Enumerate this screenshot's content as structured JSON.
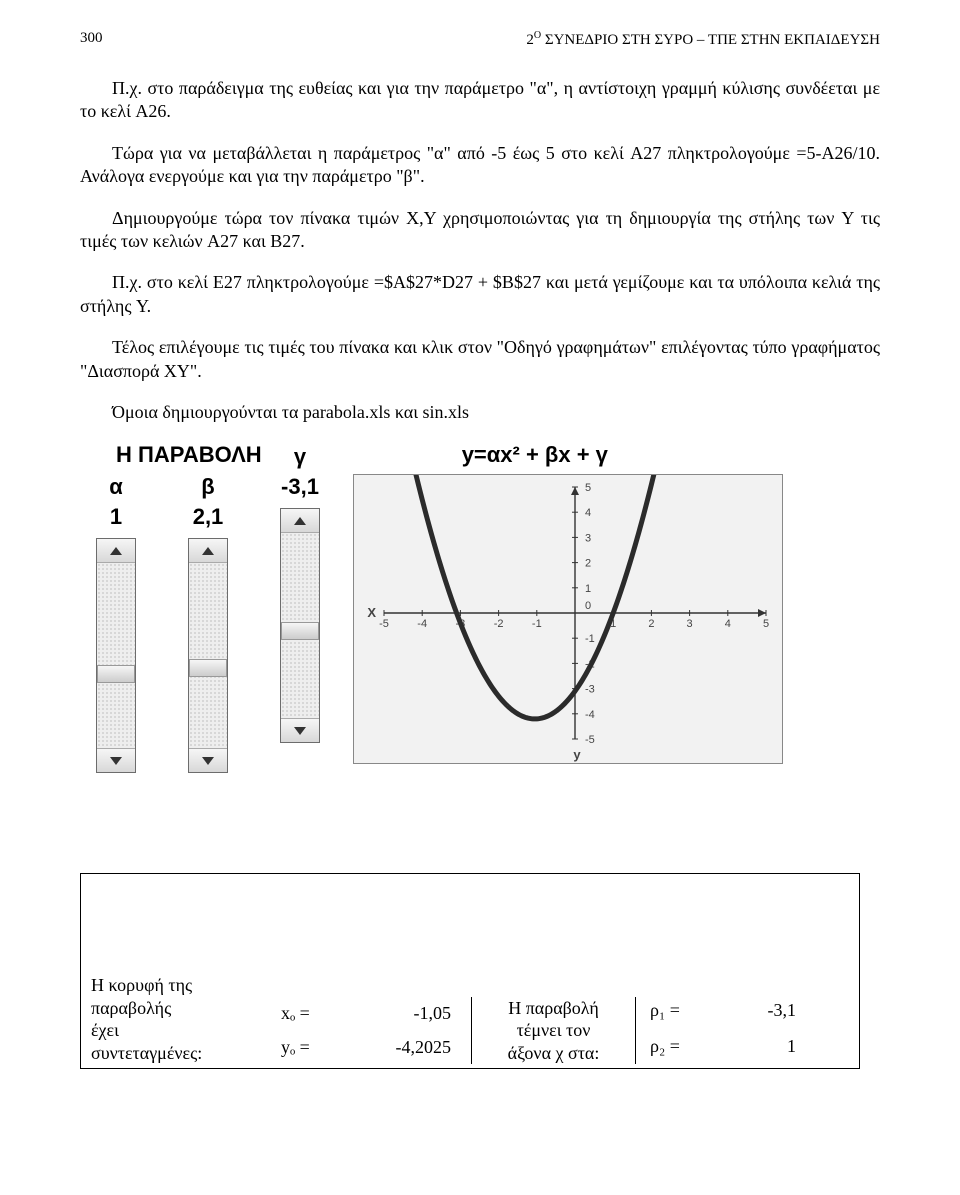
{
  "header": {
    "page_number": "300",
    "title_prefix": "2",
    "title_super": "Ο",
    "title_rest": " ΣΥΝΕΔΡΙΟ ΣΤΗ ΣΥΡΟ – ΤΠΕ ΣΤΗΝ ΕΚΠΑΙΔΕΥΣΗ"
  },
  "paragraphs": {
    "p1": "Π.χ. στο παράδειγμα της ευθείας και για την παράμετρο \"α\", η αντίστοιχη γραμμή κύλισης συνδέεται με το κελί A26.",
    "p2": "Τώρα για να μεταβάλλεται η παράμετρος \"α\" από -5 έως 5 στο κελί A27 πληκτρολογούμε =5-A26/10. Ανάλογα ενεργούμε και για την παράμετρο \"β\".",
    "p3": "Δημιουργούμε τώρα τον πίνακα τιμών X,Y χρησιμοποιώντας για τη δημιουργία της στήλης των Y τις τιμές των κελιών A27 και B27.",
    "p4": "Π.χ. στο κελί E27 πληκτρολογούμε =$A$27*D27 + $B$27 και μετά γεμίζουμε και τα υπόλοιπα κελιά της στήλης Y.",
    "p5": "Τέλος επιλέγουμε τις τιμές του πίνακα και κλικ στον \"Οδηγό γραφημάτων\" επιλέγοντας τύπο γραφήματος \"Διασπορά XY\".",
    "p6": "Όμοια δημιουργούνται τα parabola.xls και sin.xls"
  },
  "chart_section": {
    "title": "Η ΠΑΡΑΒΟΛΗ",
    "formula": "y=αx² + βx + γ",
    "controls": [
      {
        "label": "α",
        "value": "1",
        "thumb_pct": 55
      },
      {
        "label": "β",
        "value": "2,1",
        "thumb_pct": 52
      },
      {
        "label": "γ",
        "value": "-3,1",
        "thumb_pct": 48
      }
    ]
  },
  "chart": {
    "type": "line",
    "background_color": "#f2f2f2",
    "axis_color": "#333333",
    "curve_color": "#2b2b2b",
    "curve_width": 5,
    "label_color": "#444444",
    "tick_font_size": 11,
    "x_label": "X",
    "y_label": "y",
    "xlim": [
      -5,
      5
    ],
    "ylim": [
      -5,
      5
    ],
    "xticks": [
      -5,
      -4,
      -3,
      -2,
      -1,
      1,
      2,
      3,
      4,
      5
    ],
    "yticks": [
      -5,
      -4,
      -3,
      -2,
      -1,
      1,
      2,
      3,
      4,
      5
    ],
    "a": 1,
    "b": 2.1,
    "c": -3.1
  },
  "vertex_box": {
    "left_text_l1": "Η κορυφή της",
    "left_text_l2": "παραβολής",
    "left_text_l3": "έχει",
    "left_text_l4": "συντεταγμένες:",
    "xo_label": "xₒ =",
    "xo_value": "-1,05",
    "yo_label": "yₒ =",
    "yo_value": "-4,2025",
    "mid_text_l1": "Η παραβολή",
    "mid_text_l2": "τέμνει τον",
    "mid_text_l3": "άξονα χ στα:",
    "r1_label": "ρ₁ =",
    "r1_value": "-3,1",
    "r2_label": "ρ₂ =",
    "r2_value": "1"
  }
}
